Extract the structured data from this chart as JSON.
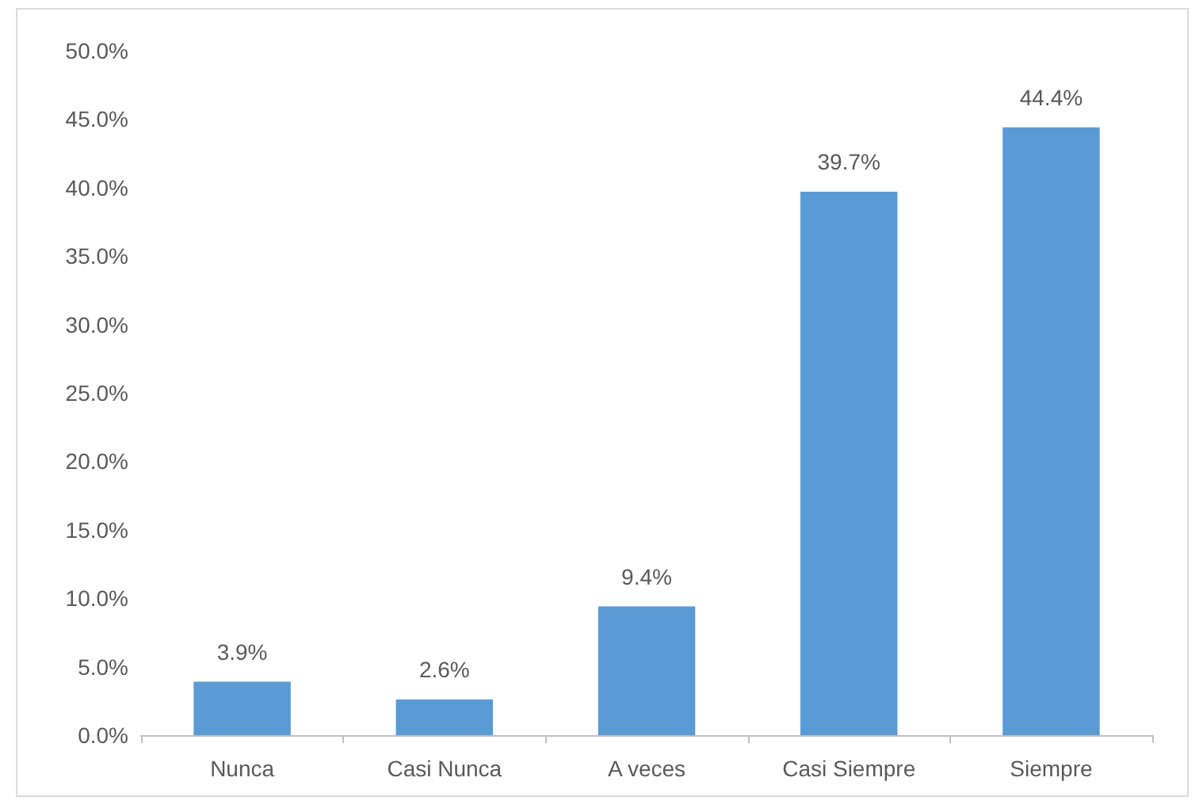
{
  "chart_data": {
    "type": "bar",
    "categories": [
      "Nunca",
      "Casi Nunca",
      "A veces",
      "Casi Siempre",
      "Siempre"
    ],
    "values": [
      3.9,
      2.6,
      9.4,
      39.7,
      44.4
    ],
    "value_labels": [
      "3.9%",
      "2.6%",
      "9.4%",
      "39.7%",
      "44.4%"
    ],
    "color": "#5b9bd5",
    "ylim": [
      0,
      50
    ],
    "yticks": [
      {
        "value": 0,
        "label": "0.0%"
      },
      {
        "value": 5,
        "label": "5.0%"
      },
      {
        "value": 10,
        "label": "10.0%"
      },
      {
        "value": 15,
        "label": "15.0%"
      },
      {
        "value": 20,
        "label": "20.0%"
      },
      {
        "value": 25,
        "label": "25.0%"
      },
      {
        "value": 30,
        "label": "30.0%"
      },
      {
        "value": 35,
        "label": "35.0%"
      },
      {
        "value": 40,
        "label": "40.0%"
      },
      {
        "value": 45,
        "label": "45.0%"
      },
      {
        "value": 50,
        "label": "50.0%"
      }
    ],
    "grid": false
  }
}
